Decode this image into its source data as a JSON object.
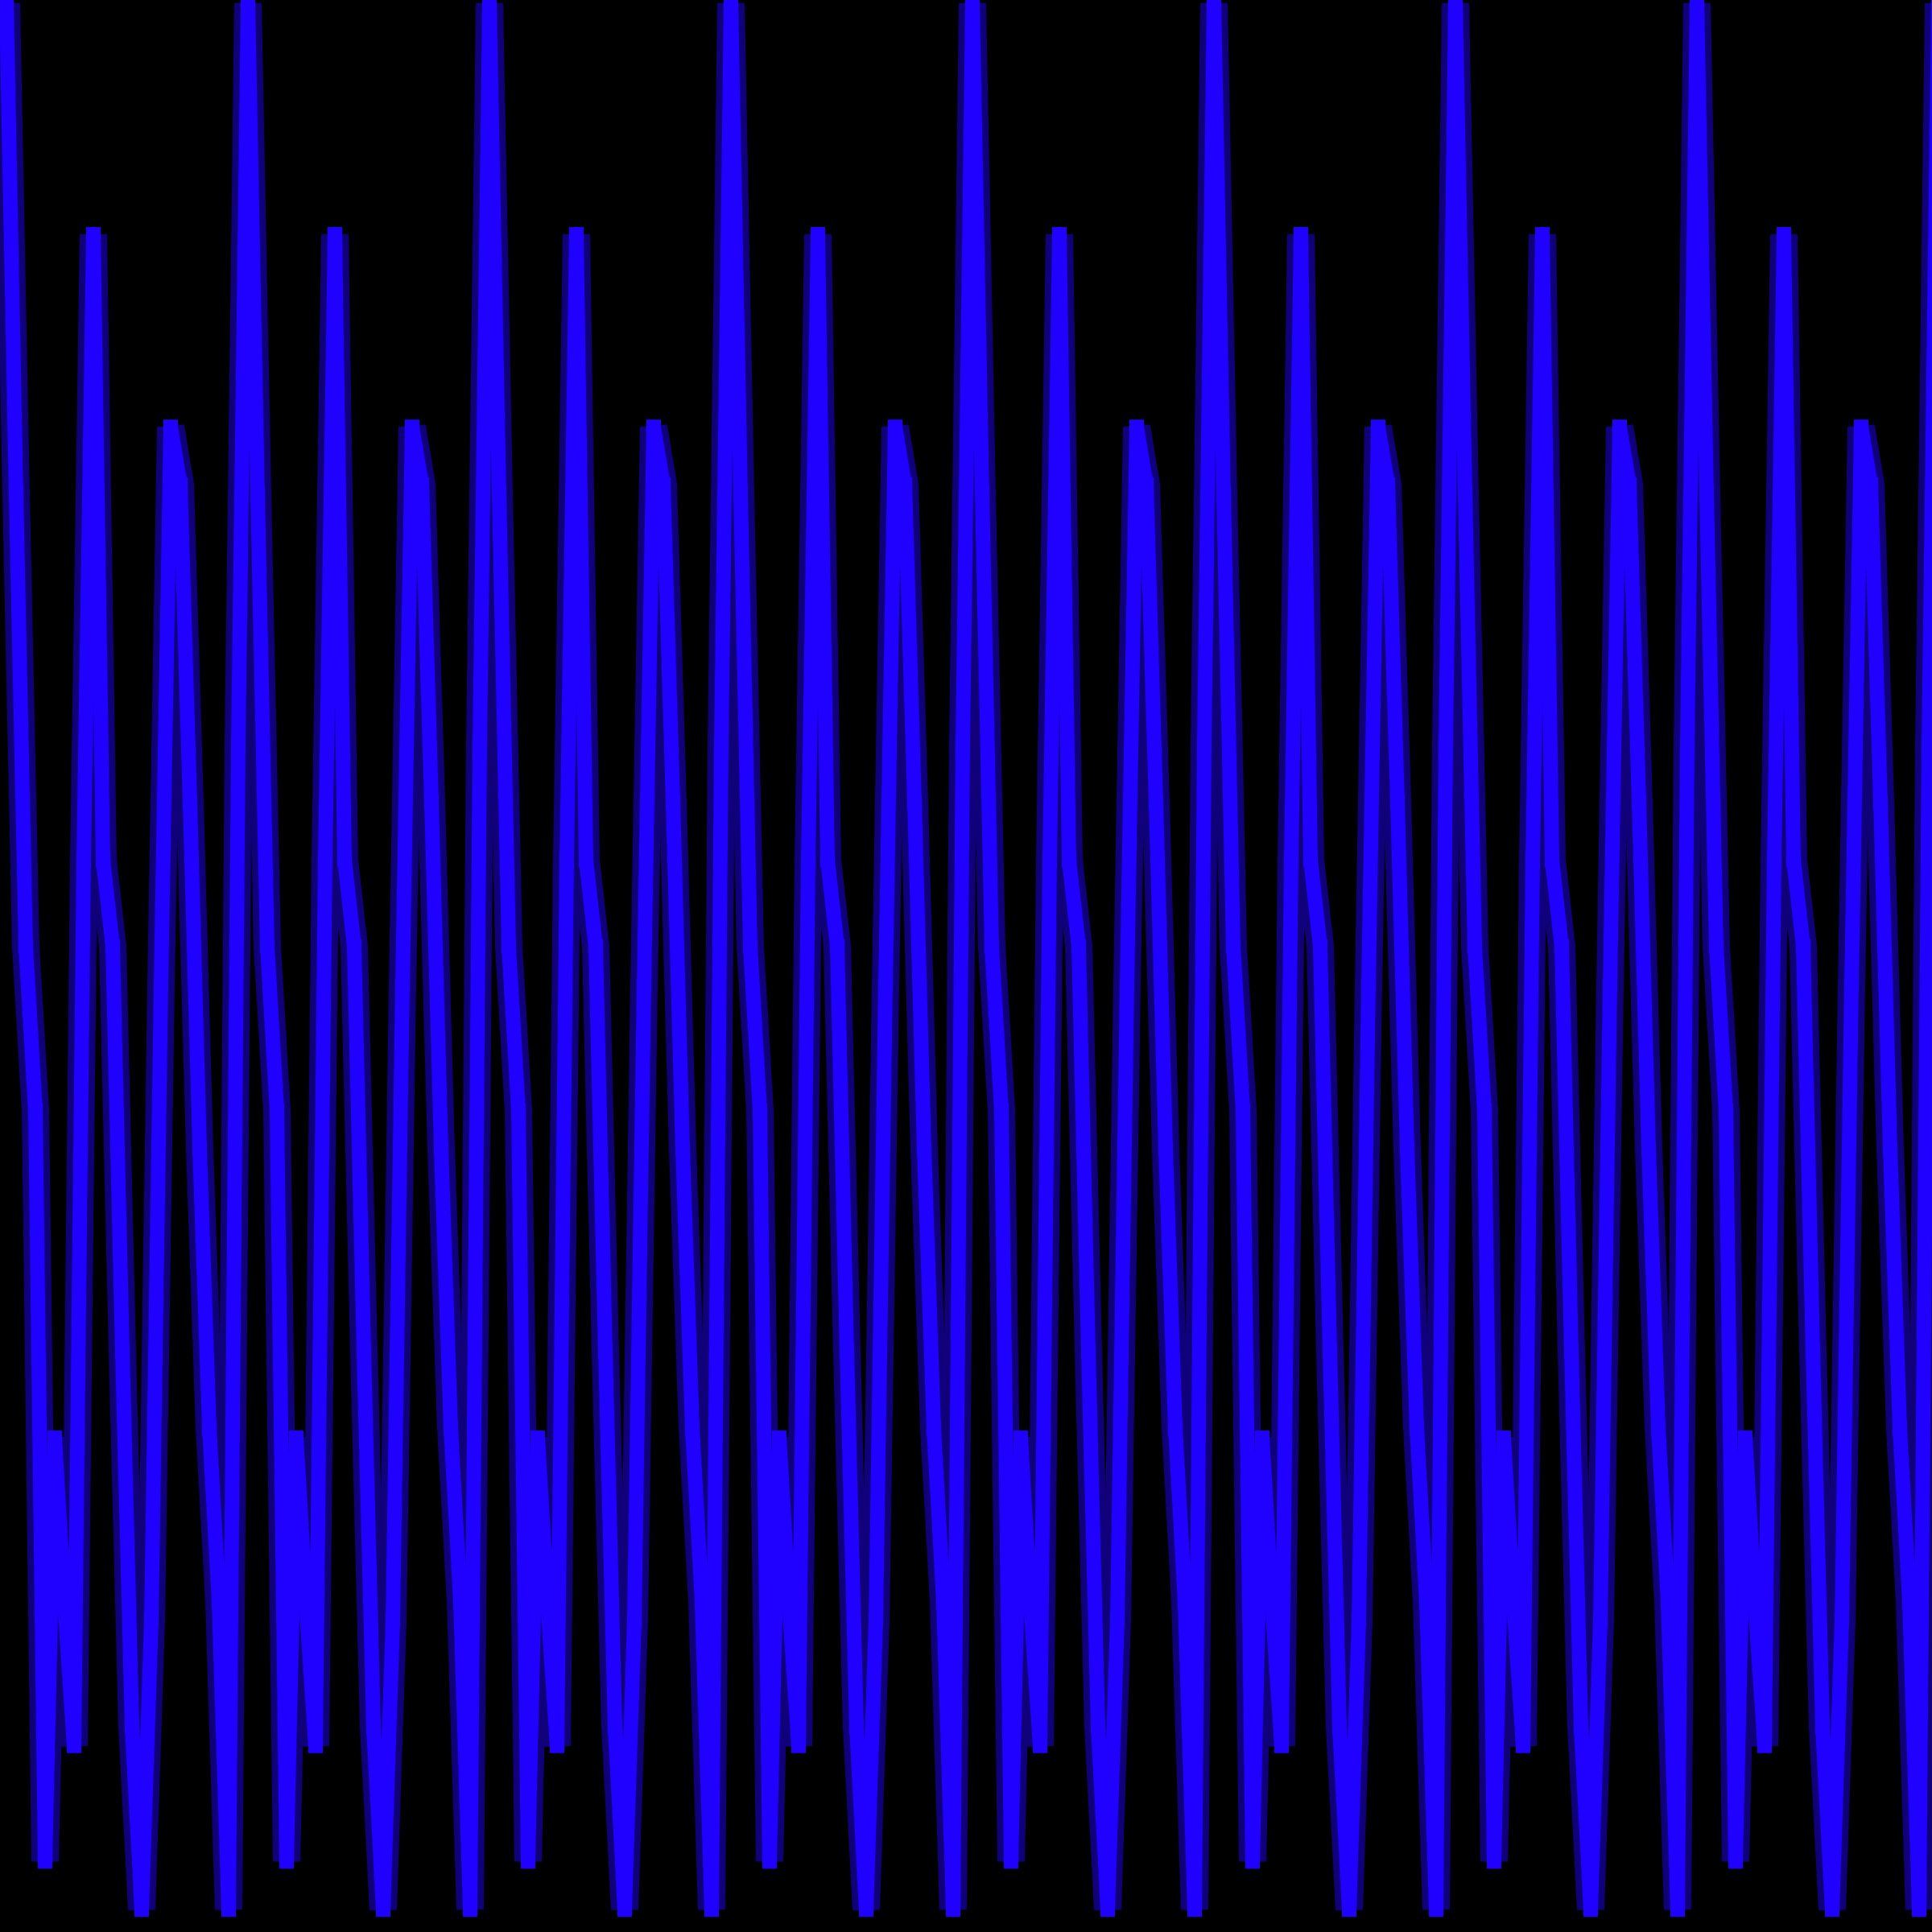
{
  "chart_data": {
    "type": "line",
    "title": "",
    "xlabel": "",
    "ylabel": "",
    "ylim": [
      -1,
      1
    ],
    "grid": false,
    "legend": "none",
    "repeats": 8,
    "period_samples": [
      1.0,
      0.49,
      0.02,
      -0.15,
      -0.93,
      -0.49,
      -0.66,
      -0.81,
      0.11,
      0.76,
      0.11,
      0.02,
      -0.4,
      -0.79,
      -0.98,
      -0.68,
      -0.02,
      0.56,
      0.5,
      0.17,
      -0.19,
      -0.48,
      -0.66,
      -0.98,
      0.23
    ],
    "colors": {
      "background": "#000000",
      "line": "#2000ff",
      "shadow": "#10007a"
    }
  }
}
